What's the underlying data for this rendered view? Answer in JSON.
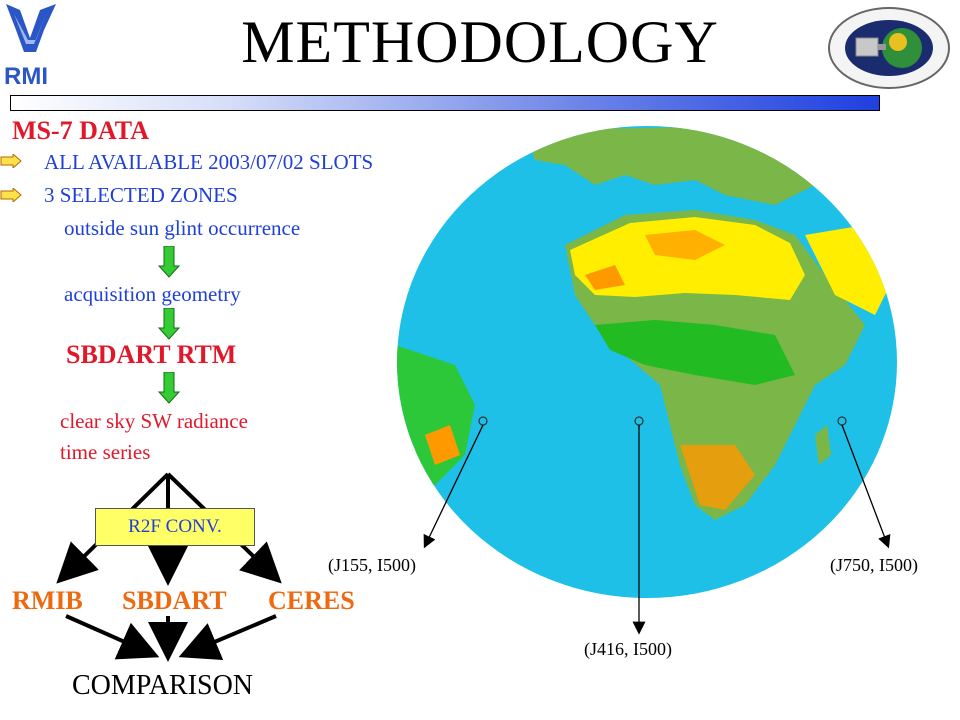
{
  "title": "METHODOLOGY",
  "section_heading": "MS-7 DATA",
  "bullets": [
    "ALL AVAILABLE 2003/07/02 SLOTS",
    "3 SELECTED ZONES"
  ],
  "steps": {
    "sun_glint": "outside sun glint occurrence",
    "geometry": "acquisition geometry",
    "rtm": "SBDART RTM",
    "radiance_line1": "clear sky SW radiance",
    "radiance_line2": "time series",
    "conversion": "R2F CONV.",
    "branch_left": "RMIB",
    "branch_mid": "SBDART",
    "branch_right": "CERES",
    "result": "COMPARISON"
  },
  "zones": [
    "(J155, I500)",
    "(J416, I500)",
    "(J750, I500)"
  ],
  "logos": {
    "left": "RMI"
  },
  "colors": {
    "blue": "#1f3fd8",
    "red": "#e0182a",
    "orange": "#ee6a10",
    "arrow_green": "#33cc33"
  },
  "icons": [
    "arrow-bullet-icon",
    "green-down-arrow-icon",
    "earth-globe-image"
  ]
}
